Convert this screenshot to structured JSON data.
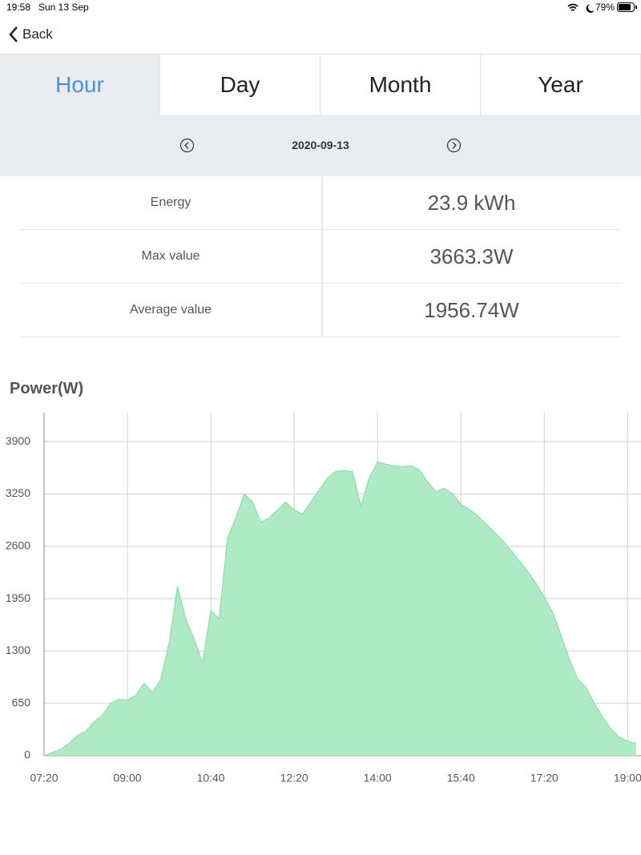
{
  "status_bar": {
    "time": "19:58",
    "date": "Sun 13 Sep",
    "battery": "79%"
  },
  "nav": {
    "back": "Back"
  },
  "tabs": [
    "Hour",
    "Day",
    "Month",
    "Year"
  ],
  "selected_tab": 0,
  "date_picker": {
    "date": "2020-09-13"
  },
  "stats": [
    {
      "label": "Energy",
      "value": "23.9 kWh"
    },
    {
      "label": "Max value",
      "value": "3663.3W"
    },
    {
      "label": "Average value",
      "value": "1956.74W"
    }
  ],
  "chart_data": {
    "type": "area",
    "title": "Power(W)",
    "x": [
      440,
      450,
      460,
      470,
      480,
      490,
      500,
      510,
      520,
      530,
      540,
      550,
      560,
      570,
      580,
      590,
      600,
      610,
      620,
      630,
      640,
      650,
      660,
      670,
      680,
      690,
      700,
      710,
      720,
      730,
      740,
      750,
      760,
      770,
      780,
      790,
      800,
      810,
      820,
      830,
      840,
      850,
      860,
      870,
      880,
      890,
      900,
      910,
      920,
      930,
      940,
      950,
      960,
      970,
      980,
      990,
      1000,
      1010,
      1020,
      1030,
      1040,
      1050,
      1060,
      1070,
      1080,
      1090,
      1100,
      1110,
      1120,
      1130,
      1140,
      1150
    ],
    "series": [
      {
        "name": "Power",
        "color": "#aeeac3",
        "line_color": "#8fdcab",
        "values": [
          0,
          40,
          80,
          150,
          250,
          300,
          420,
          500,
          650,
          700,
          690,
          750,
          900,
          780,
          950,
          1400,
          2100,
          1700,
          1450,
          1150,
          1800,
          1700,
          2700,
          2950,
          3250,
          3150,
          2900,
          2950,
          3050,
          3150,
          3050,
          3000,
          3150,
          3300,
          3450,
          3530,
          3540,
          3530,
          3100,
          3450,
          3650,
          3620,
          3600,
          3590,
          3600,
          3550,
          3400,
          3280,
          3320,
          3250,
          3120,
          3060,
          2980,
          2880,
          2780,
          2670,
          2550,
          2420,
          2290,
          2140,
          1970,
          1780,
          1500,
          1200,
          950,
          850,
          650,
          480,
          330,
          230,
          180,
          150
        ]
      }
    ],
    "xlim": [
      440,
      1156
    ],
    "xticks": [
      {
        "value": 440,
        "label": "07:20"
      },
      {
        "value": 540,
        "label": "09:00"
      },
      {
        "value": 640,
        "label": "10:40"
      },
      {
        "value": 740,
        "label": "12:20"
      },
      {
        "value": 840,
        "label": "14:00"
      },
      {
        "value": 940,
        "label": "15:40"
      },
      {
        "value": 1040,
        "label": "17:20"
      },
      {
        "value": 1140,
        "label": "19:00"
      }
    ],
    "ylim": [
      0,
      4260
    ],
    "yticks": [
      0,
      650,
      1300,
      1950,
      2600,
      3250,
      3900
    ],
    "grid": true
  }
}
